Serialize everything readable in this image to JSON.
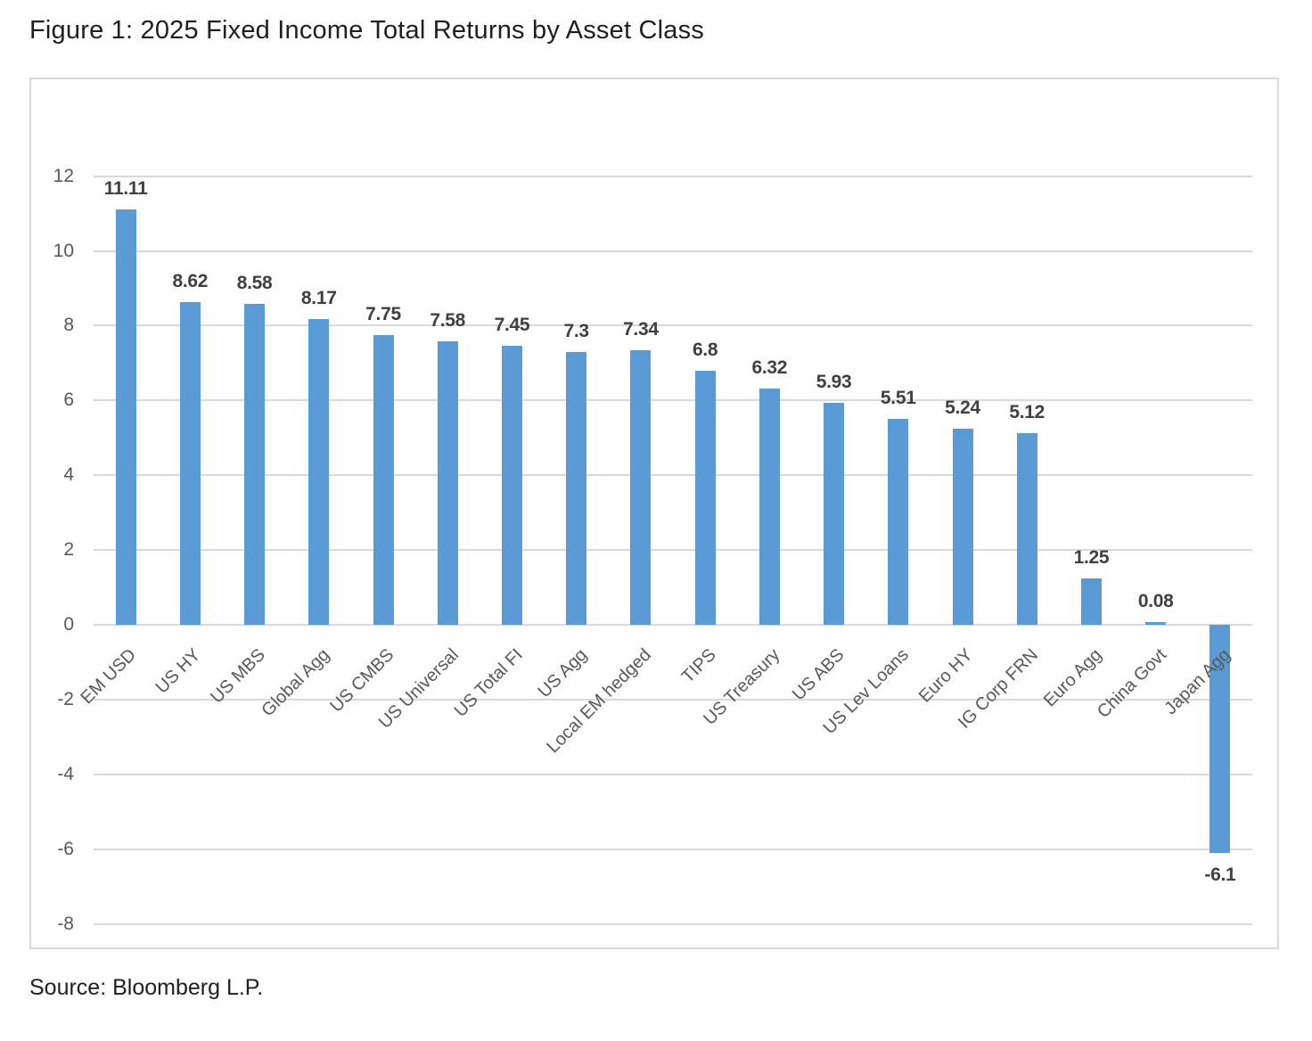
{
  "figure": {
    "title": "Figure 1: 2025 Fixed Income Total Returns by Asset Class",
    "source": "Source: Bloomberg L.P."
  },
  "chart_data": {
    "type": "bar",
    "title": "Figure 1: 2025 Fixed Income Total Returns by Asset Class",
    "categories": [
      "EM USD",
      "US HY",
      "US MBS",
      "Global Agg",
      "US CMBS",
      "US Universal",
      "US Total FI",
      "US Agg",
      "Local EM hedged",
      "TIPS",
      "US Treasury",
      "US ABS",
      "US Lev Loans",
      "Euro HY",
      "IG Corp FRN",
      "Euro Agg",
      "China Govt",
      "Japan Agg"
    ],
    "values": [
      11.11,
      8.62,
      8.58,
      8.17,
      7.75,
      7.58,
      7.45,
      7.3,
      7.34,
      6.8,
      6.32,
      5.93,
      5.51,
      5.24,
      5.12,
      1.25,
      0.08,
      -6.1
    ],
    "value_labels": [
      "11.11",
      "8.62",
      "8.58",
      "8.17",
      "7.75",
      "7.58",
      "7.45",
      "7.3",
      "7.34",
      "6.8",
      "6.32",
      "5.93",
      "5.51",
      "5.24",
      "5.12",
      "1.25",
      "0.08",
      "-6.1"
    ],
    "xlabel": "",
    "ylabel": "",
    "ylim": [
      -8,
      12
    ],
    "ytick_step": 2,
    "ytick_labels": [
      "12",
      "10",
      "8",
      "6",
      "4",
      "2",
      "0",
      "-2",
      "-4",
      "-6",
      "-8"
    ],
    "grid": true,
    "legend": "none",
    "bar_color": "#5b9bd5",
    "gridline_color": "#d9d9d9",
    "value_label_color": "#404040",
    "axis_text_color": "#595959",
    "source": "Source: Bloomberg L.P."
  }
}
